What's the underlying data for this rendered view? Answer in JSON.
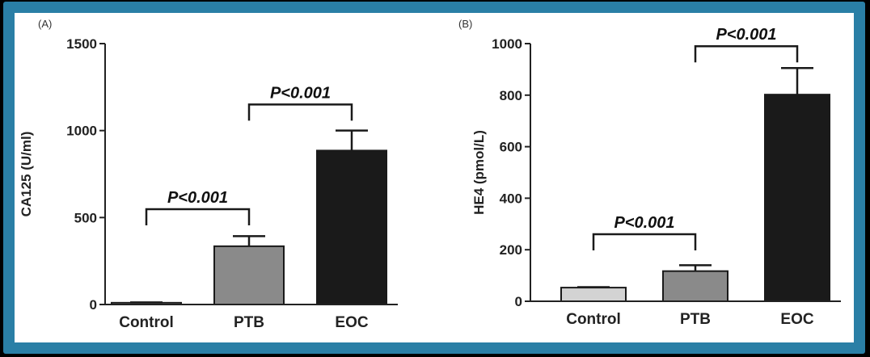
{
  "chart_data": [
    {
      "type": "bar",
      "panel_label": "(A)",
      "categories": [
        "Control",
        "PTB",
        "EOC"
      ],
      "values": [
        10,
        335,
        885
      ],
      "error_upper": [
        12,
        393,
        1000
      ],
      "bar_colors": [
        "#d3d3d3",
        "#8a8a8a",
        "#1a1a1a"
      ],
      "ylabel": "CA125 (U/ml)",
      "ylim": [
        0,
        1500
      ],
      "yticks": [
        0,
        500,
        1000,
        1500
      ],
      "yticklabels": [
        "0",
        "500",
        "1000",
        "1500"
      ],
      "brackets": [
        {
          "from": 0,
          "to": 1,
          "level": 548,
          "label": "P<0.001"
        },
        {
          "from": 1,
          "to": 2,
          "level": 1150,
          "label": "P<0.001"
        }
      ]
    },
    {
      "type": "bar",
      "panel_label": "(B)",
      "categories": [
        "Control",
        "PTB",
        "EOC"
      ],
      "values": [
        53,
        117,
        802
      ],
      "error_upper": [
        55,
        140,
        905
      ],
      "bar_colors": [
        "#d3d3d3",
        "#8a8a8a",
        "#1a1a1a"
      ],
      "ylabel": "HE4 (pmol/L)",
      "ylim": [
        0,
        1000
      ],
      "yticks": [
        0,
        200,
        400,
        600,
        800,
        1000
      ],
      "yticklabels": [
        "0",
        "200",
        "400",
        "600",
        "800",
        "1000"
      ],
      "brackets": [
        {
          "from": 0,
          "to": 1,
          "level": 260,
          "label": "P<0.001"
        },
        {
          "from": 1,
          "to": 2,
          "level": 990,
          "label": "P<0.001"
        }
      ]
    }
  ]
}
